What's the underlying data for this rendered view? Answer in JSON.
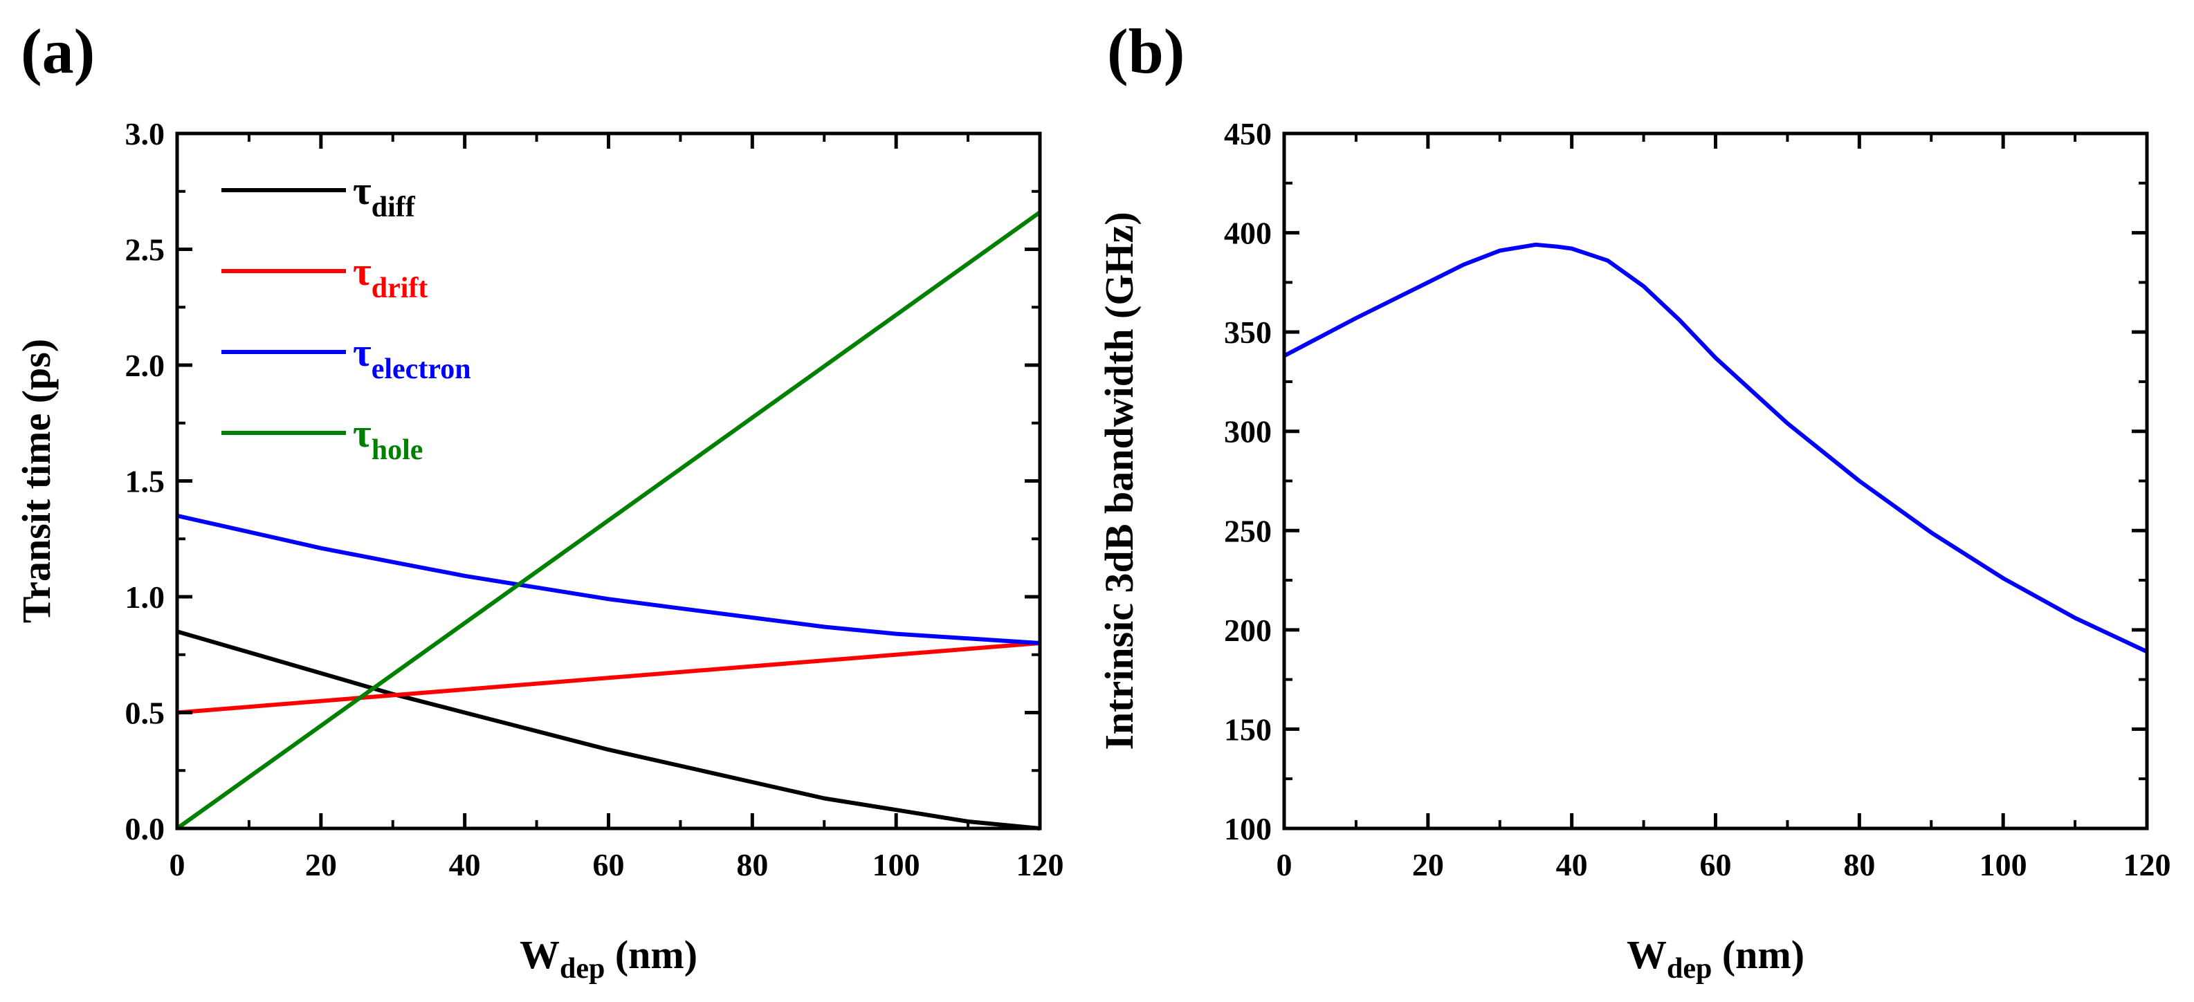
{
  "chart_data": [
    {
      "panel_label": "(a)",
      "type": "line",
      "title": "",
      "xlabel": "W",
      "xlabel_sub": "dep",
      "xlabel_unit": " (nm)",
      "ylabel": "Transit time (ps)",
      "xlim": [
        0,
        120
      ],
      "ylim": [
        0,
        3.0
      ],
      "xticks": [
        0,
        20,
        40,
        60,
        80,
        100,
        120
      ],
      "xtick_labels": [
        "0",
        "20",
        "40",
        "60",
        "80",
        "100",
        "120"
      ],
      "yticks": [
        0.0,
        0.5,
        1.0,
        1.5,
        2.0,
        2.5,
        3.0
      ],
      "ytick_labels": [
        "0.0",
        "0.5",
        "1.0",
        "1.5",
        "2.0",
        "2.5",
        "3.0"
      ],
      "legend_position": "top-left",
      "series": [
        {
          "name": "τdiff",
          "symbol": "τ",
          "sub": "diff",
          "color": "#000000",
          "x": [
            0,
            10,
            20,
            30,
            40,
            50,
            60,
            70,
            80,
            90,
            100,
            110,
            120
          ],
          "y": [
            0.85,
            0.76,
            0.67,
            0.58,
            0.5,
            0.42,
            0.34,
            0.27,
            0.2,
            0.13,
            0.08,
            0.03,
            0.0
          ]
        },
        {
          "name": "τdrift",
          "symbol": "τ",
          "sub": "drift",
          "color": "#ff0000",
          "x": [
            0,
            120
          ],
          "y": [
            0.5,
            0.8
          ]
        },
        {
          "name": "τelectron",
          "symbol": "τ",
          "sub": "electron",
          "color": "#0000ff",
          "x": [
            0,
            10,
            20,
            30,
            40,
            50,
            60,
            70,
            80,
            90,
            100,
            110,
            120
          ],
          "y": [
            1.35,
            1.28,
            1.21,
            1.15,
            1.09,
            1.04,
            0.99,
            0.95,
            0.91,
            0.87,
            0.84,
            0.82,
            0.8
          ]
        },
        {
          "name": "τhole",
          "symbol": "τ",
          "sub": "hole",
          "color": "#008000",
          "x": [
            0,
            120
          ],
          "y": [
            0.0,
            2.66
          ]
        }
      ]
    },
    {
      "panel_label": "(b)",
      "type": "line",
      "title": "",
      "xlabel": "W",
      "xlabel_sub": "dep",
      "xlabel_unit": " (nm)",
      "ylabel": "Intrinsic 3dB bandwidth (GHz)",
      "xlim": [
        0,
        120
      ],
      "ylim": [
        100,
        450
      ],
      "xticks": [
        0,
        20,
        40,
        60,
        80,
        100,
        120
      ],
      "xtick_labels": [
        "0",
        "20",
        "40",
        "60",
        "80",
        "100",
        "120"
      ],
      "yticks": [
        100,
        150,
        200,
        250,
        300,
        350,
        400,
        450
      ],
      "ytick_labels": [
        "100",
        "150",
        "200",
        "250",
        "300",
        "350",
        "400",
        "450"
      ],
      "series": [
        {
          "name": "bandwidth",
          "color": "#0000ff",
          "x": [
            0,
            10,
            20,
            25,
            30,
            35,
            38,
            40,
            45,
            50,
            55,
            60,
            70,
            80,
            90,
            100,
            110,
            120
          ],
          "y": [
            338,
            357,
            375,
            384,
            391,
            394,
            393,
            392,
            386,
            373,
            356,
            337,
            304,
            275,
            249,
            226,
            206,
            189
          ]
        }
      ]
    }
  ]
}
